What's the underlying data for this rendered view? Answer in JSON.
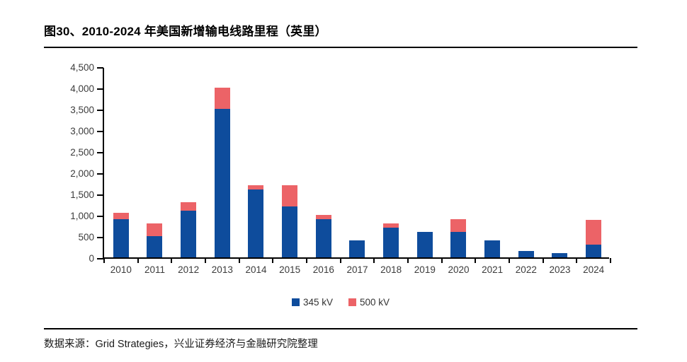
{
  "figure": {
    "title": "图30、2010-2024 年美国新增输电线路里程（英里）",
    "source": "数据来源：Grid Strategies，兴业证券经济与金融研究院整理"
  },
  "colors": {
    "bar_345kv": "#0E4C9C",
    "bar_500kv": "#EC6367",
    "axis": "#000000",
    "tick_label": "#3C3C3C",
    "title_text": "#000000"
  },
  "chart_data": {
    "type": "bar",
    "stacked": true,
    "title": "图30、2010-2024 年美国新增输电线路里程（英里）",
    "xlabel": "",
    "ylabel": "",
    "categories": [
      "2010",
      "2011",
      "2012",
      "2013",
      "2014",
      "2015",
      "2016",
      "2017",
      "2018",
      "2019",
      "2020",
      "2021",
      "2022",
      "2023",
      "2024"
    ],
    "series": [
      {
        "name": "345 kV",
        "color": "#0E4C9C",
        "values": [
          900,
          500,
          1100,
          3500,
          1600,
          1200,
          900,
          400,
          700,
          600,
          600,
          400,
          150,
          100,
          300
        ]
      },
      {
        "name": "500 kV",
        "color": "#EC6367",
        "values": [
          150,
          300,
          200,
          500,
          100,
          500,
          100,
          0,
          100,
          0,
          300,
          0,
          0,
          0,
          580
        ]
      }
    ],
    "ylim": [
      0,
      4500
    ],
    "y_tick_step": 500,
    "y_tick_labels": [
      "0",
      "500",
      "1,000",
      "1,500",
      "2,000",
      "2,500",
      "3,000",
      "3,500",
      "4,000",
      "4,500"
    ],
    "grid": false,
    "legend_position": "bottom"
  }
}
